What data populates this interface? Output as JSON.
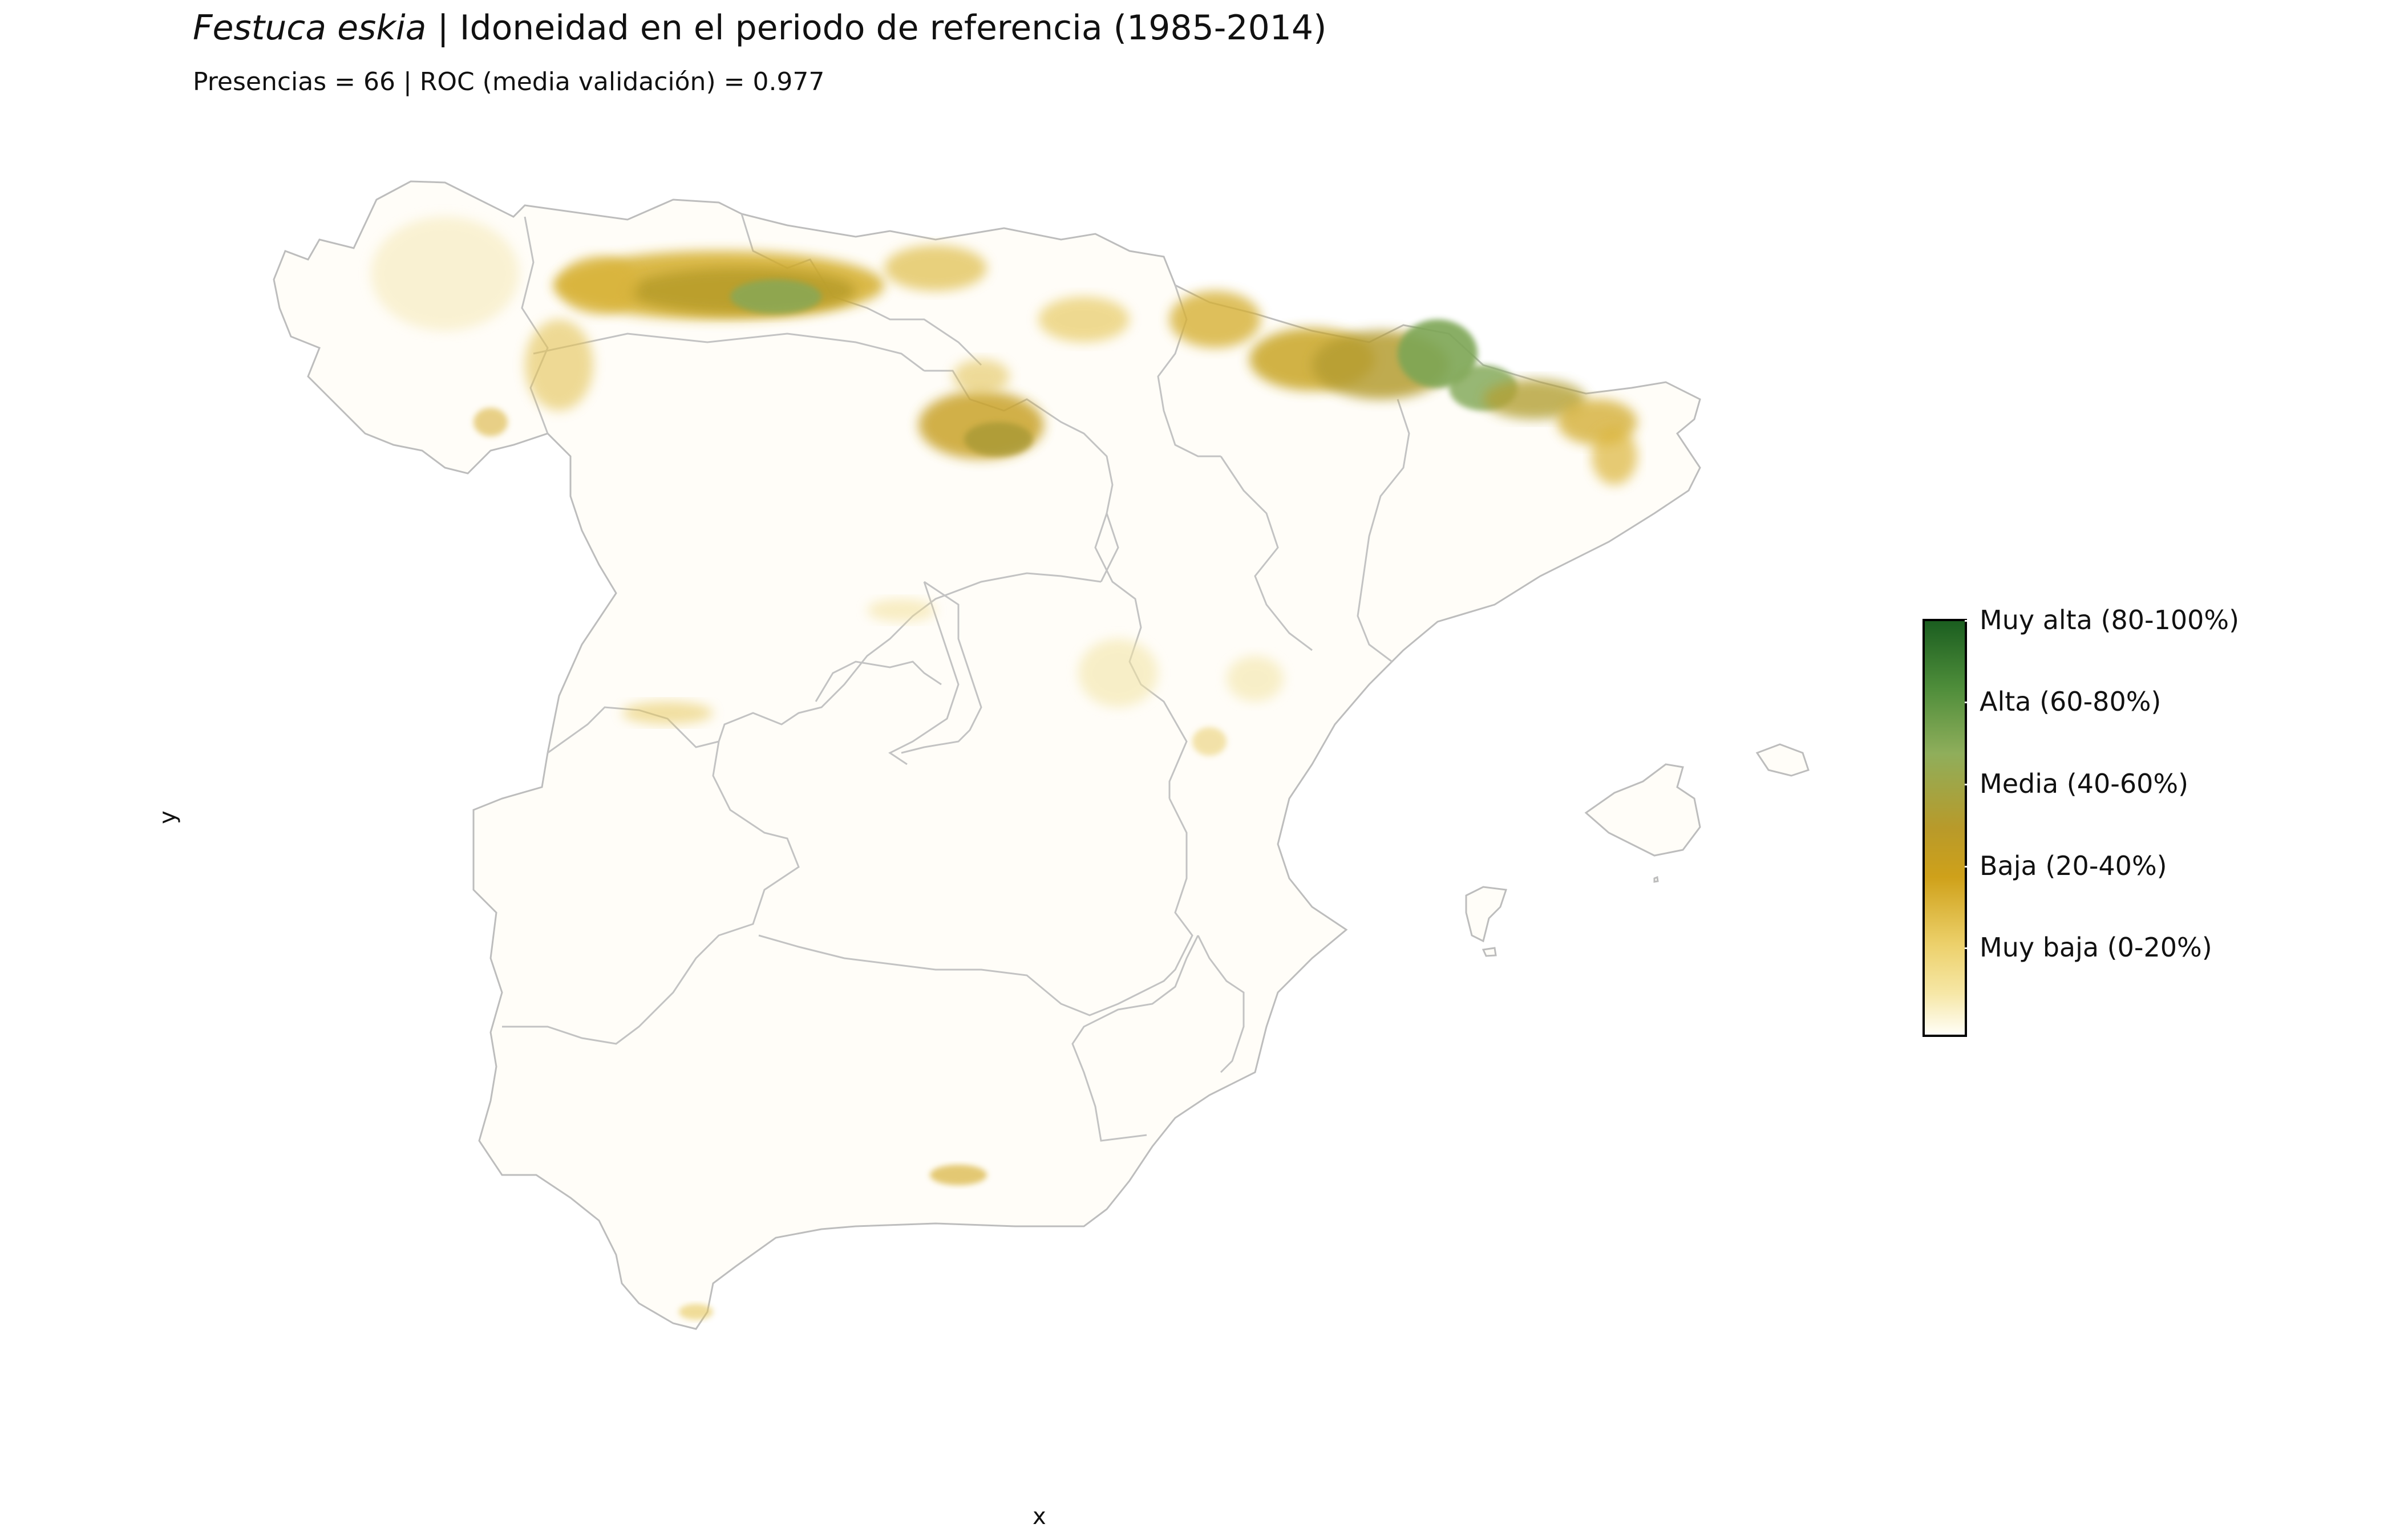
{
  "title": {
    "species": "Festuca eskia",
    "separator": " | ",
    "text": "Idoneidad en el periodo de referencia (1985-2014)"
  },
  "subtitle": "Presencias = 66  |  ROC (media validación) = 0.977",
  "axes": {
    "x_label": "x",
    "y_label": "y"
  },
  "legend": {
    "labels": [
      "Muy alta (80-100%)",
      "Alta (60-80%)",
      "Media (40-60%)",
      "Baja (20-40%)",
      "Muy baja (0-20%)"
    ],
    "colors": [
      "#1b5e20",
      "#7fa955",
      "#b5982a",
      "#d4a21a",
      "#f3e08e",
      "#fffef7"
    ]
  },
  "map": {
    "region": "Península Ibérica (España) y Baleares",
    "border_color": "#bdbdbd",
    "land_color": "#fffdf8"
  }
}
